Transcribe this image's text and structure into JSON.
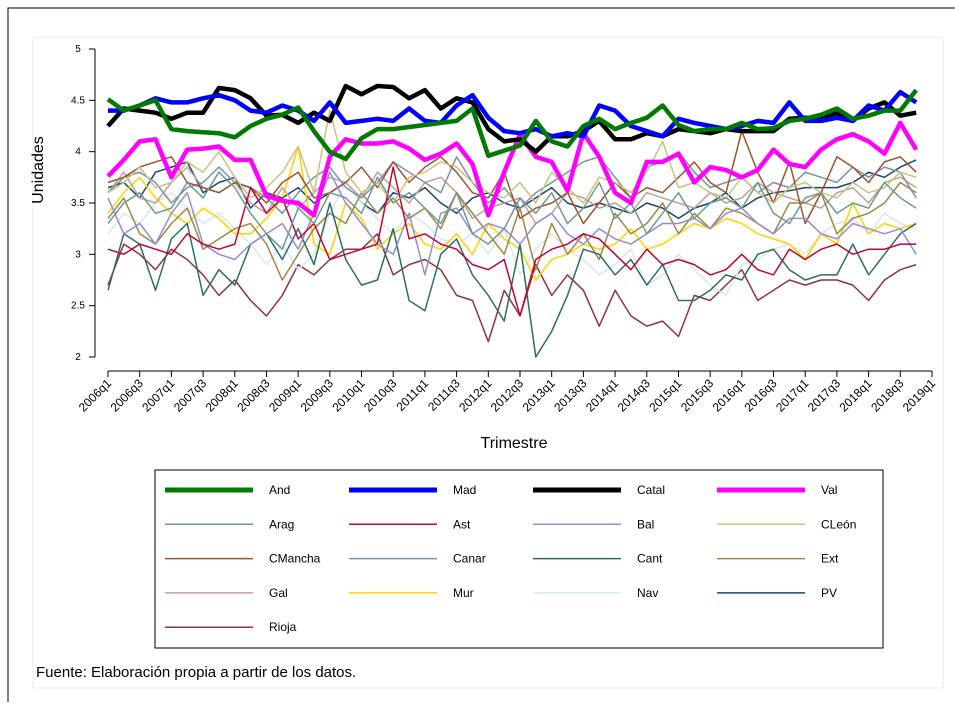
{
  "chart_data": {
    "type": "line",
    "ylabel": "Unidades",
    "xlabel": "Trimestre",
    "note": "Fuente: Elaboración propia a partir de los datos.",
    "categories": [
      "2006q1",
      null,
      "2006q3",
      null,
      "2007q1",
      null,
      "2007q3",
      null,
      "2008q1",
      null,
      "2008q3",
      null,
      "2009q1",
      null,
      "2009q3",
      null,
      "2010q1",
      null,
      "2010q3",
      null,
      "2011q1",
      null,
      "2011q3",
      null,
      "2012q1",
      null,
      "2012q3",
      null,
      "2013q1",
      null,
      "2013q3",
      null,
      "2014q1",
      null,
      "2014q3",
      null,
      "2015q1",
      null,
      "2015q3",
      null,
      "2016q1",
      null,
      "2016q3",
      null,
      "2017q1",
      null,
      "2017q3",
      null,
      "2018q1",
      null,
      "2018q3",
      null,
      "2019q1"
    ],
    "ylim": [
      2,
      5
    ],
    "yticks": [
      2,
      2.5,
      3,
      3.5,
      4,
      4.5,
      5
    ],
    "series": [
      {
        "name": "And",
        "color": "#007a00",
        "values": [
          4.51,
          4.4,
          4.45,
          4.5,
          4.22,
          4.2,
          4.19,
          4.18,
          4.14,
          4.25,
          4.32,
          4.36,
          4.43,
          4.2,
          4.0,
          3.93,
          4.13,
          4.22,
          4.22,
          4.24,
          4.26,
          4.28,
          4.3,
          4.42,
          3.96,
          4.01,
          4.06,
          4.3,
          4.1,
          4.05,
          4.25,
          4.32,
          4.22,
          4.28,
          4.33,
          4.45,
          4.26,
          4.2,
          4.22,
          4.22,
          4.28,
          4.22,
          4.23,
          4.3,
          4.32,
          4.36,
          4.42,
          4.32,
          4.35,
          4.4,
          4.4,
          4.6,
          null
        ]
      },
      {
        "name": "Mad",
        "color": "#0000ff",
        "values": [
          4.4,
          4.4,
          4.45,
          4.52,
          4.48,
          4.48,
          4.52,
          4.55,
          4.5,
          4.4,
          4.38,
          4.45,
          4.4,
          4.3,
          4.48,
          4.28,
          4.3,
          4.32,
          4.3,
          4.42,
          4.3,
          4.28,
          4.45,
          4.55,
          4.33,
          4.2,
          4.18,
          4.22,
          4.15,
          4.18,
          4.15,
          4.45,
          4.4,
          4.25,
          4.2,
          4.15,
          4.32,
          4.28,
          4.25,
          4.22,
          4.25,
          4.3,
          4.28,
          4.48,
          4.3,
          4.3,
          4.33,
          4.3,
          4.45,
          4.4,
          4.58,
          4.48,
          null
        ]
      },
      {
        "name": "Catal",
        "color": "#000000",
        "values": [
          4.25,
          4.42,
          4.4,
          4.38,
          4.32,
          4.38,
          4.38,
          4.62,
          4.6,
          4.52,
          4.35,
          4.36,
          4.28,
          4.38,
          4.3,
          4.64,
          4.56,
          4.64,
          4.63,
          4.52,
          4.6,
          4.42,
          4.52,
          4.48,
          4.22,
          4.1,
          4.12,
          4.0,
          4.15,
          4.15,
          4.2,
          4.3,
          4.12,
          4.12,
          4.18,
          4.15,
          4.22,
          4.2,
          4.18,
          4.22,
          4.2,
          4.2,
          4.2,
          4.32,
          4.33,
          4.32,
          4.38,
          4.3,
          4.42,
          4.48,
          4.35,
          4.38,
          null
        ]
      },
      {
        "name": "Val",
        "color": "#ff00ff",
        "values": [
          3.76,
          3.92,
          4.1,
          4.12,
          3.75,
          4.02,
          4.03,
          4.05,
          3.92,
          3.92,
          3.57,
          3.52,
          3.5,
          3.38,
          3.95,
          4.12,
          4.08,
          4.08,
          4.1,
          4.03,
          3.92,
          3.98,
          4.08,
          3.88,
          3.38,
          3.8,
          4.17,
          3.95,
          3.9,
          3.62,
          4.18,
          3.95,
          3.6,
          3.5,
          3.9,
          3.9,
          3.98,
          3.7,
          3.85,
          3.82,
          3.75,
          3.82,
          4.02,
          3.88,
          3.85,
          4.02,
          4.12,
          4.17,
          4.1,
          3.98,
          4.28,
          4.02,
          null
        ]
      },
      {
        "name": "Arag",
        "color": "#6f9a8d",
        "values": [
          3.3,
          3.5,
          3.6,
          3.4,
          3.45,
          3.7,
          3.55,
          3.8,
          3.65,
          3.4,
          3.2,
          3.05,
          3.45,
          3.3,
          3.6,
          3.55,
          3.4,
          3.75,
          3.5,
          3.6,
          3.45,
          3.3,
          3.6,
          3.2,
          3.1,
          3.25,
          3.55,
          3.4,
          3.6,
          3.3,
          3.45,
          3.7,
          3.35,
          3.5,
          3.2,
          3.4,
          3.6,
          3.35,
          3.5,
          3.55,
          3.45,
          3.7,
          3.4,
          3.3,
          3.55,
          3.6,
          3.4,
          3.5,
          3.45,
          3.7,
          3.55,
          3.45,
          null
        ]
      },
      {
        "name": "Ast",
        "color": "#c10534",
        "values": [
          3.05,
          3.0,
          3.1,
          3.05,
          3.0,
          3.2,
          3.1,
          3.05,
          3.1,
          3.65,
          3.4,
          3.55,
          3.15,
          3.3,
          2.95,
          3.0,
          3.05,
          3.1,
          3.85,
          3.15,
          3.2,
          3.1,
          3.05,
          2.9,
          2.85,
          2.95,
          2.4,
          2.95,
          3.05,
          3.1,
          3.2,
          3.15,
          3.0,
          2.85,
          3.05,
          2.9,
          2.95,
          2.9,
          2.8,
          2.85,
          3.0,
          2.85,
          2.8,
          3.05,
          2.95,
          3.05,
          3.1,
          3.0,
          3.05,
          3.05,
          3.1,
          3.1,
          null
        ]
      },
      {
        "name": "Bal",
        "color": "#938dd2",
        "values": [
          3.55,
          3.2,
          3.3,
          3.1,
          3.4,
          3.6,
          3.1,
          3.0,
          2.95,
          3.1,
          3.2,
          3.3,
          3.05,
          3.4,
          3.8,
          3.5,
          3.3,
          3.1,
          3.0,
          3.4,
          2.8,
          3.4,
          3.45,
          3.2,
          3.3,
          3.25,
          3.1,
          3.3,
          3.4,
          3.2,
          3.1,
          3.25,
          3.15,
          3.1,
          3.2,
          3.3,
          3.3,
          3.35,
          3.25,
          3.4,
          3.45,
          3.3,
          3.2,
          3.35,
          3.35,
          3.2,
          3.15,
          3.3,
          3.25,
          3.2,
          3.25,
          3.0,
          null
        ]
      },
      {
        "name": "CLeón",
        "color": "#cac27e",
        "values": [
          3.6,
          3.7,
          3.85,
          3.65,
          3.7,
          3.9,
          3.8,
          4.0,
          3.75,
          3.55,
          3.65,
          3.8,
          4.05,
          3.6,
          4.4,
          3.8,
          3.6,
          3.7,
          3.5,
          3.75,
          3.8,
          3.9,
          3.85,
          3.7,
          3.6,
          3.55,
          3.7,
          3.5,
          3.8,
          3.65,
          3.5,
          3.75,
          3.7,
          3.6,
          3.8,
          4.1,
          3.65,
          3.7,
          3.6,
          3.55,
          3.75,
          3.6,
          3.5,
          3.65,
          3.7,
          3.6,
          3.55,
          3.7,
          3.6,
          3.65,
          3.8,
          3.75,
          null
        ]
      },
      {
        "name": "CMancha",
        "color": "#a0522d",
        "values": [
          3.7,
          3.75,
          3.85,
          3.9,
          3.95,
          3.7,
          3.65,
          3.6,
          3.7,
          3.65,
          3.5,
          3.7,
          3.8,
          3.55,
          3.6,
          3.7,
          3.85,
          3.65,
          3.9,
          3.7,
          3.85,
          3.95,
          3.8,
          3.6,
          3.55,
          3.8,
          3.35,
          3.45,
          3.5,
          3.6,
          3.3,
          3.5,
          3.7,
          3.55,
          3.65,
          3.6,
          3.75,
          3.9,
          3.7,
          3.6,
          4.2,
          3.8,
          3.5,
          3.9,
          3.3,
          3.6,
          3.95,
          3.85,
          3.7,
          3.9,
          3.95,
          3.8,
          null
        ]
      },
      {
        "name": "Canar",
        "color": "#7b92a8",
        "values": [
          3.6,
          3.75,
          3.8,
          3.7,
          3.5,
          3.65,
          3.7,
          3.85,
          3.7,
          3.65,
          3.55,
          3.4,
          3.6,
          3.75,
          3.85,
          3.65,
          3.55,
          3.7,
          3.9,
          3.8,
          3.7,
          3.6,
          3.95,
          3.7,
          3.5,
          3.65,
          3.45,
          3.6,
          3.7,
          3.8,
          3.9,
          3.95,
          3.75,
          3.55,
          3.85,
          3.9,
          4.0,
          3.8,
          3.65,
          3.7,
          3.75,
          3.6,
          3.7,
          3.65,
          3.8,
          3.75,
          3.7,
          3.85,
          3.75,
          3.85,
          3.8,
          3.55,
          null
        ]
      },
      {
        "name": "Cant",
        "color": "#2d6d66",
        "values": [
          2.65,
          3.2,
          3.1,
          2.65,
          3.15,
          3.3,
          2.6,
          2.85,
          2.7,
          3.1,
          3.2,
          2.95,
          3.25,
          2.9,
          3.5,
          2.95,
          2.7,
          2.75,
          3.25,
          2.55,
          2.45,
          3.0,
          3.15,
          2.8,
          2.6,
          2.35,
          3.1,
          2.0,
          2.25,
          2.6,
          3.05,
          3.0,
          2.8,
          2.95,
          2.7,
          2.9,
          2.55,
          2.55,
          2.65,
          2.8,
          2.75,
          3.0,
          3.05,
          2.85,
          2.75,
          2.8,
          2.8,
          3.1,
          2.8,
          3.0,
          3.2,
          3.3,
          null
        ]
      },
      {
        "name": "Ext",
        "color": "#9c8847",
        "values": [
          3.35,
          3.55,
          3.2,
          3.1,
          3.3,
          3.45,
          3.05,
          3.15,
          3.25,
          3.3,
          3.1,
          2.75,
          3.0,
          3.25,
          3.4,
          3.3,
          3.6,
          3.4,
          3.55,
          3.35,
          3.45,
          3.25,
          3.6,
          3.4,
          3.2,
          3.0,
          3.45,
          2.85,
          3.3,
          3.0,
          3.2,
          2.95,
          3.4,
          3.2,
          3.3,
          3.5,
          3.2,
          3.4,
          3.25,
          3.45,
          3.4,
          3.3,
          3.2,
          3.5,
          3.5,
          3.6,
          3.2,
          3.35,
          3.4,
          3.5,
          3.7,
          3.6,
          null
        ]
      },
      {
        "name": "Gal",
        "color": "#bfa19c",
        "values": [
          3.6,
          3.8,
          3.55,
          3.5,
          3.7,
          3.85,
          3.65,
          3.6,
          3.7,
          3.5,
          3.4,
          3.65,
          3.45,
          3.6,
          3.75,
          3.7,
          3.55,
          3.8,
          3.65,
          3.5,
          3.7,
          3.75,
          3.6,
          3.35,
          3.45,
          3.5,
          3.55,
          3.3,
          3.4,
          3.6,
          3.55,
          3.45,
          3.5,
          3.4,
          3.6,
          3.55,
          3.5,
          3.45,
          3.6,
          3.5,
          3.55,
          3.7,
          3.6,
          3.55,
          3.5,
          3.45,
          3.6,
          3.65,
          3.5,
          3.7,
          3.75,
          3.65,
          null
        ]
      },
      {
        "name": "Mur",
        "color": "#ffd200",
        "values": [
          3.4,
          3.6,
          3.75,
          3.55,
          3.4,
          3.3,
          3.45,
          3.35,
          3.2,
          3.2,
          3.35,
          3.55,
          4.05,
          3.1,
          3.0,
          3.5,
          3.35,
          3.05,
          3.2,
          3.3,
          3.1,
          3.05,
          3.2,
          3.0,
          3.3,
          3.15,
          3.05,
          2.75,
          2.95,
          3.0,
          3.1,
          3.05,
          3.1,
          3.25,
          3.05,
          3.1,
          3.2,
          3.3,
          3.25,
          3.35,
          3.3,
          3.2,
          3.15,
          3.1,
          2.95,
          3.2,
          3.1,
          3.5,
          3.2,
          3.3,
          3.25,
          3.3,
          null
        ]
      },
      {
        "name": "Nav",
        "color": "#d9e6eb",
        "values": [
          3.2,
          3.4,
          3.3,
          3.5,
          3.6,
          3.45,
          3.3,
          3.4,
          3.25,
          3.1,
          2.9,
          3.1,
          2.85,
          3.0,
          3.4,
          3.7,
          3.5,
          3.35,
          3.2,
          3.4,
          3.3,
          3.15,
          3.1,
          3.2,
          3.0,
          3.25,
          2.8,
          3.05,
          3.2,
          3.05,
          2.95,
          2.8,
          2.9,
          3.05,
          2.7,
          2.8,
          3.0,
          2.85,
          2.7,
          2.6,
          2.9,
          2.95,
          3.05,
          3.1,
          3.0,
          3.2,
          3.3,
          3.35,
          3.2,
          3.4,
          3.3,
          3.25,
          null
        ]
      },
      {
        "name": "PV",
        "color": "#1a476f",
        "values": [
          3.65,
          3.7,
          3.55,
          3.8,
          3.85,
          3.9,
          3.6,
          3.7,
          3.75,
          3.45,
          3.6,
          3.55,
          3.65,
          3.5,
          3.6,
          3.7,
          3.5,
          3.4,
          3.6,
          3.55,
          3.65,
          3.5,
          3.4,
          3.55,
          3.6,
          3.5,
          3.45,
          3.55,
          3.65,
          3.5,
          3.45,
          3.5,
          3.45,
          3.4,
          3.5,
          3.45,
          3.35,
          3.45,
          3.5,
          3.6,
          3.45,
          3.55,
          3.6,
          3.62,
          3.65,
          3.65,
          3.65,
          3.7,
          3.8,
          3.75,
          3.85,
          3.92,
          null
        ]
      },
      {
        "name": "Rioja",
        "color": "#90353b",
        "values": [
          2.7,
          3.1,
          3.0,
          2.85,
          3.05,
          2.95,
          2.8,
          2.6,
          2.75,
          2.55,
          2.4,
          2.6,
          2.9,
          2.8,
          2.95,
          3.05,
          3.05,
          3.2,
          2.8,
          2.9,
          2.95,
          2.85,
          2.6,
          2.55,
          2.15,
          2.65,
          2.4,
          2.9,
          2.6,
          2.8,
          2.65,
          2.3,
          2.65,
          2.4,
          2.3,
          2.35,
          2.2,
          2.6,
          2.55,
          2.7,
          2.85,
          2.55,
          2.65,
          2.75,
          2.7,
          2.75,
          2.75,
          2.7,
          2.55,
          2.75,
          2.85,
          2.9,
          null
        ]
      }
    ]
  }
}
